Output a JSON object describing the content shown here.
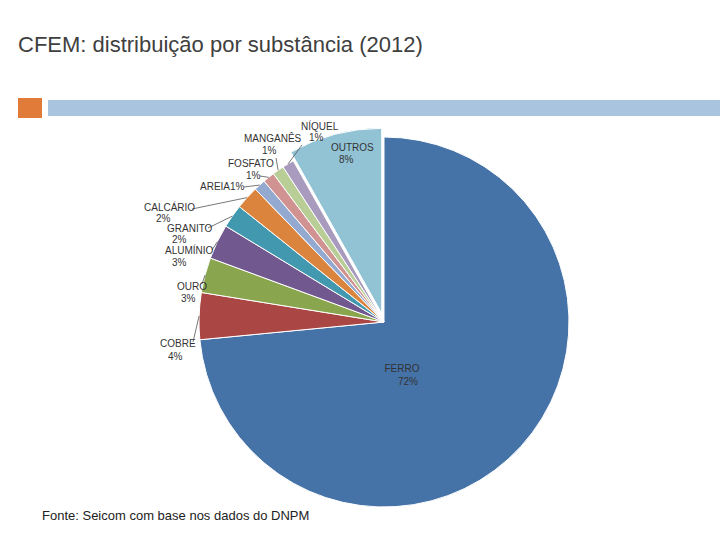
{
  "chart_data": {
    "type": "pie",
    "title": "CFEM: distribuição por substância (2012)",
    "categories": [
      "FERRO",
      "COBRE",
      "OURO",
      "ALUMÍNIO",
      "GRANITO",
      "CALCÁRIO",
      "AREIA",
      "FOSFATO",
      "MANGANÊS",
      "NÍQUEL",
      "OUTROS"
    ],
    "values": [
      72,
      4,
      3,
      3,
      2,
      2,
      1,
      1,
      1,
      1,
      8
    ],
    "value_labels": [
      "72%",
      "4%",
      "3%",
      "3%",
      "2%",
      "2%",
      "1%",
      "1%",
      "1%",
      "1%",
      "8%"
    ],
    "colors": [
      "#4572a7",
      "#aa4643",
      "#89a54e",
      "#71588f",
      "#4198af",
      "#db843d",
      "#93a9cf",
      "#d19392",
      "#b9cd96",
      "#a99bbd",
      "#92c3d5"
    ],
    "data_labels": true,
    "annotations": [
      "Fonte: Seicom  com base nos dados do DNPM"
    ]
  }
}
